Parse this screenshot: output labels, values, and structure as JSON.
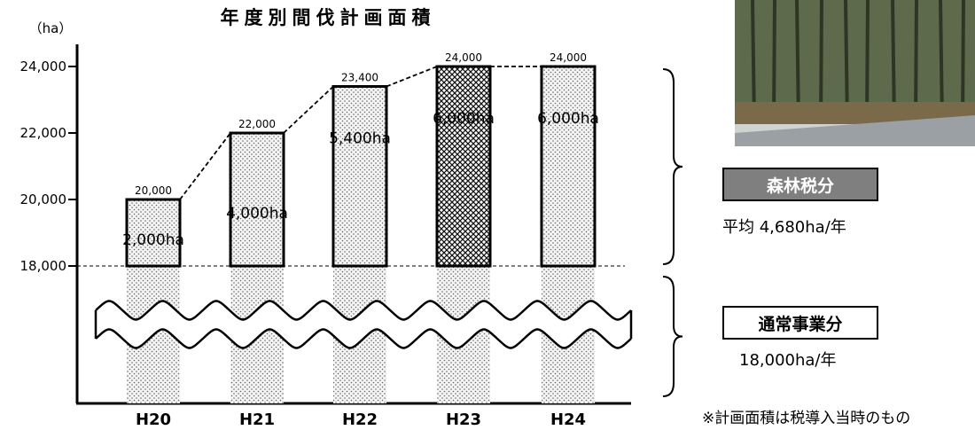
{
  "chart_data": {
    "type": "bar",
    "title": "年度別間伐計画面積",
    "unit_label": "（ha）",
    "categories": [
      "H20",
      "H21",
      "H22",
      "H23",
      "H24"
    ],
    "base_value": 18000,
    "values": [
      20000,
      22000,
      23400,
      24000,
      24000
    ],
    "value_labels": [
      "20,000",
      "22,000",
      "23,400",
      "24,000",
      "24,000"
    ],
    "increment_labels": [
      "2,000ha",
      "4,000ha",
      "5,400ha",
      "6,000ha",
      "6,000ha"
    ],
    "highlight_index": 3,
    "y_ticks": [
      {
        "value": 18000,
        "label": "18,000"
      },
      {
        "value": 20000,
        "label": "20,000"
      },
      {
        "value": 22000,
        "label": "22,000"
      },
      {
        "value": 24000,
        "label": "24,000"
      }
    ],
    "ylim": [
      18000,
      24000
    ],
    "axis_break": true
  },
  "side": {
    "forest_tax_label": "森林税分",
    "forest_tax_avg": "平均  4,680ha/年",
    "normal_label": "通常事業分",
    "normal_value": "18,000ha/年",
    "footnote": "※計画面積は税導入当時のもの"
  },
  "photo": {
    "description_icon": "forest-photo"
  },
  "colors": {
    "axis": "#000000",
    "dark_box": "#7f7f7f",
    "photo_trees": "#4a5a3a",
    "photo_sky": "#cfd4d0"
  }
}
